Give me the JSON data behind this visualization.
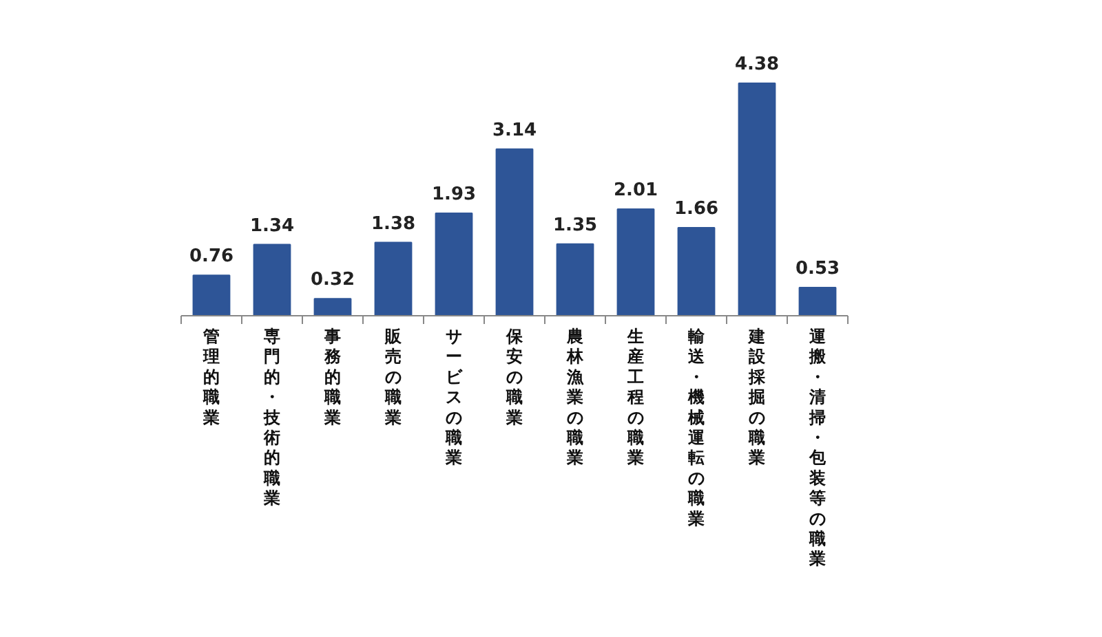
{
  "chart_data": {
    "type": "bar",
    "categories": [
      "管理的職業",
      "専門的・技術的職業",
      "事務的職業",
      "販売の職業",
      "サービスの職業",
      "保安の職業",
      "農林漁業の職業",
      "生産工程の職業",
      "輸送・機械運転の職業",
      "建設採掘の職業",
      "運搬・清掃・包装等の職業"
    ],
    "values": [
      0.76,
      1.34,
      0.32,
      1.38,
      1.93,
      3.14,
      1.35,
      2.01,
      1.66,
      4.38,
      0.53
    ],
    "color": "#2e5597",
    "data_labels": true,
    "grid": false
  }
}
